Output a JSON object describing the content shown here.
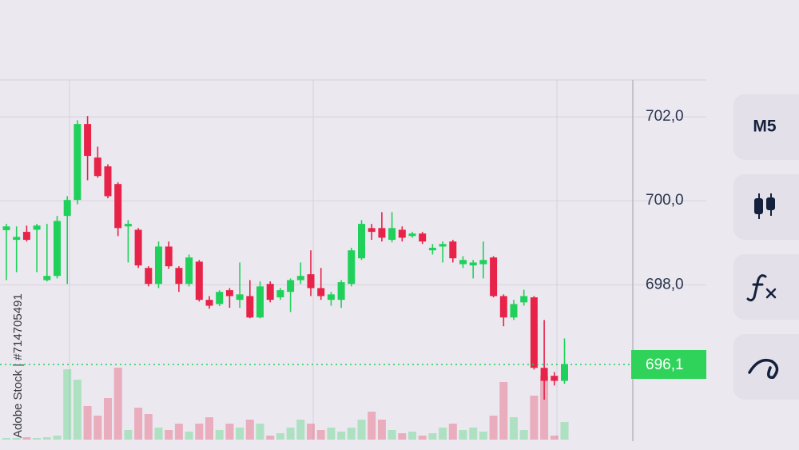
{
  "chart_data": {
    "type": "candlestick",
    "categories": [
      null,
      null,
      null,
      null,
      null,
      null,
      null,
      null,
      null,
      null,
      null,
      null,
      null,
      null,
      null,
      null,
      null,
      null,
      null,
      null,
      null,
      null,
      null,
      null,
      null,
      null,
      null,
      null,
      null,
      null,
      null,
      null,
      null,
      null,
      null,
      null,
      null,
      null,
      null,
      null,
      null,
      null,
      null,
      null,
      null,
      null,
      null,
      null,
      null,
      null,
      null,
      null,
      null,
      null,
      null,
      null
    ],
    "open": [
      699.3,
      699.07,
      699.26,
      699.31,
      698.11,
      698.21,
      699.64,
      700.02,
      701.83,
      701.03,
      700.82,
      700.4,
      699.39,
      699.31,
      698.4,
      698.02,
      698.91,
      698.4,
      698.02,
      698.55,
      697.64,
      697.54,
      697.87,
      697.64,
      697.73,
      697.22,
      698.02,
      697.7,
      697.83,
      698.11,
      698.25,
      697.92,
      697.64,
      697.64,
      698.02,
      698.63,
      699.35,
      699.35,
      699.07,
      699.31,
      699.16,
      699.22,
      698.82,
      698.91,
      699.03,
      698.49,
      698.46,
      698.49,
      698.65,
      697.73,
      697.22,
      697.58,
      697.7,
      696.02,
      695.83,
      695.71
    ],
    "high": [
      699.45,
      699.39,
      699.41,
      699.45,
      699.45,
      699.64,
      700.11,
      701.92,
      702.02,
      701.29,
      700.87,
      700.44,
      699.54,
      699.35,
      698.44,
      699.03,
      699.03,
      698.44,
      698.72,
      698.59,
      697.73,
      697.87,
      697.92,
      698.53,
      698.11,
      698.08,
      698.08,
      697.92,
      698.15,
      698.53,
      698.82,
      698.4,
      697.83,
      698.11,
      698.88,
      699.54,
      699.45,
      699.73,
      699.73,
      699.39,
      699.26,
      699.26,
      698.97,
      699.03,
      699.07,
      698.68,
      698.59,
      699.03,
      698.68,
      697.77,
      697.64,
      697.88,
      697.73,
      697.16,
      695.92,
      696.72
    ],
    "low": [
      698.11,
      698.3,
      699.03,
      698.3,
      698.08,
      698.15,
      698.02,
      699.92,
      700.49,
      700.55,
      700.06,
      699.16,
      698.53,
      698.4,
      697.96,
      697.92,
      698.38,
      697.83,
      697.96,
      697.6,
      697.43,
      697.49,
      697.45,
      697.45,
      697.2,
      697.2,
      697.58,
      697.64,
      697.35,
      698.02,
      697.73,
      697.64,
      697.5,
      697.45,
      697.96,
      698.59,
      699.07,
      699.03,
      699.01,
      699.03,
      699.12,
      698.97,
      698.72,
      698.53,
      698.53,
      698.4,
      698.15,
      698.15,
      697.7,
      697.01,
      697.16,
      697.5,
      695.98,
      695.26,
      695.6,
      695.64
    ],
    "close": [
      699.39,
      699.14,
      699.07,
      699.41,
      698.21,
      699.52,
      700.02,
      701.83,
      701.07,
      700.59,
      700.11,
      699.35,
      699.45,
      698.46,
      698.02,
      698.91,
      698.44,
      698.02,
      698.65,
      697.64,
      697.5,
      697.83,
      697.73,
      697.77,
      697.22,
      697.96,
      697.64,
      697.87,
      698.11,
      698.21,
      697.92,
      697.73,
      697.77,
      698.06,
      698.82,
      699.45,
      699.26,
      699.12,
      699.35,
      699.12,
      699.22,
      699.03,
      698.88,
      698.97,
      698.63,
      698.59,
      698.53,
      698.59,
      697.73,
      697.22,
      697.54,
      697.73,
      696.02,
      695.71,
      695.71,
      696.11
    ],
    "volume": [
      2,
      2,
      3,
      2,
      3,
      5,
      88,
      75,
      42,
      30,
      52,
      90,
      12,
      40,
      32,
      15,
      12,
      20,
      10,
      20,
      28,
      12,
      20,
      15,
      25,
      20,
      5,
      8,
      15,
      25,
      20,
      12,
      15,
      10,
      15,
      25,
      35,
      25,
      12,
      8,
      10,
      5,
      8,
      15,
      20,
      12,
      15,
      10,
      30,
      72,
      28,
      12,
      55,
      80,
      5,
      22
    ],
    "up_color": "#1fd15a",
    "down_color": "#e8234a",
    "ylim": [
      694.31,
      702.88
    ],
    "yticks": [
      {
        "value": 698,
        "label": "698,0"
      },
      {
        "value": 700,
        "label": "700,0"
      },
      {
        "value": 702,
        "label": "702,0"
      }
    ],
    "y2lim": [
      0,
      450
    ],
    "current_price": {
      "value": 696.1,
      "label": "696,1"
    },
    "grid": true
  },
  "toolbar": {
    "timeframe": "M5"
  },
  "watermark": "Adobe Stock | #714705491"
}
